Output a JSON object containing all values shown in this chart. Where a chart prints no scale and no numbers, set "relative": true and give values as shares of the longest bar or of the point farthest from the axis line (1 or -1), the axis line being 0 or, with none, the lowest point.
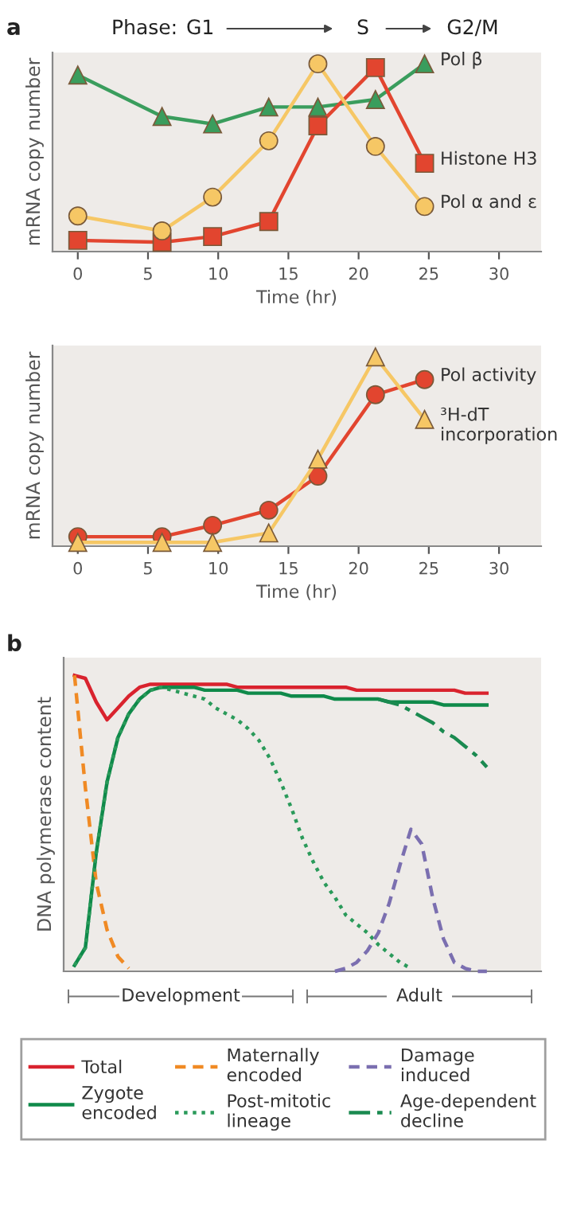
{
  "chart_data": [
    {
      "type": "line",
      "xlabel": "Time (hr)",
      "ylabel": "mRNA copy number",
      "relative": true,
      "tick_labels": "x",
      "xlim": [
        -1.8,
        33
      ],
      "xticks": [
        0,
        5,
        10,
        15,
        20,
        25,
        30
      ],
      "x": [
        0,
        6,
        9.6,
        13.6,
        17.1,
        21.2,
        24.7
      ],
      "annotations": [
        "a",
        "Phase:",
        "G1",
        "S",
        "G2/M"
      ],
      "series": [
        {
          "name": "Pol β",
          "color": "#3a9d5d",
          "marker": "triangle",
          "values": [
            0.94,
            0.72,
            0.68,
            0.77,
            0.77,
            0.81,
            1.0
          ]
        },
        {
          "name": "Histone H3",
          "color": "#e2452f",
          "marker": "square",
          "values": [
            0.06,
            0.05,
            0.08,
            0.16,
            0.67,
            0.98,
            0.47
          ]
        },
        {
          "name": "Pol α and ε",
          "color": "#f6c765",
          "marker": "circle",
          "values": [
            0.19,
            0.11,
            0.29,
            0.59,
            1.0,
            0.56,
            0.24
          ]
        }
      ]
    },
    {
      "type": "line",
      "xlabel": "Time (hr)",
      "ylabel": "mRNA copy number",
      "relative": true,
      "tick_labels": "x",
      "xlim": [
        -1.8,
        33
      ],
      "xticks": [
        0,
        5,
        10,
        15,
        20,
        25,
        30
      ],
      "x": [
        0,
        6,
        9.6,
        13.6,
        17.1,
        21.2,
        24.7
      ],
      "series": [
        {
          "name": "Pol activity",
          "color": "#e2452f",
          "marker": "circle",
          "values": [
            0.05,
            0.05,
            0.11,
            0.19,
            0.37,
            0.8,
            0.88
          ]
        },
        {
          "name": "³H-dT\nincorporation",
          "color": "#f6c765",
          "marker": "triangle",
          "values": [
            0.02,
            0.02,
            0.02,
            0.07,
            0.46,
            1.0,
            0.67
          ]
        }
      ]
    },
    {
      "type": "line",
      "ylabel": "DNA polymerase content",
      "relative": true,
      "tick_labels": false,
      "legend": "bottom",
      "annotations": [
        "b",
        "Development",
        "Adult"
      ],
      "categories": [
        null,
        null,
        null,
        null,
        null,
        null,
        null,
        null,
        null,
        null,
        null,
        null,
        null,
        null,
        null,
        null,
        null,
        null,
        null,
        null,
        null,
        null,
        null,
        null,
        null,
        null,
        null,
        null,
        null,
        null,
        null,
        null,
        null,
        null,
        null,
        null,
        null,
        null,
        null
      ],
      "series": [
        {
          "name": "Total",
          "color": "#d9232e",
          "line_style": "solid",
          "values": [
            1.0,
            0.99,
            0.91,
            0.85,
            0.89,
            0.93,
            0.96,
            0.97,
            0.97,
            0.97,
            0.97,
            0.97,
            0.97,
            0.97,
            0.97,
            0.96,
            0.96,
            0.96,
            0.96,
            0.96,
            0.96,
            0.96,
            0.96,
            0.96,
            0.96,
            0.96,
            0.95,
            0.95,
            0.95,
            0.95,
            0.95,
            0.95,
            0.95,
            0.95,
            0.95,
            0.95,
            0.94,
            0.94,
            0.94
          ]
        },
        {
          "name": "Zygote\nencoded",
          "color": "#0f8a4a",
          "line_style": "solid",
          "values": [
            0.02,
            0.08,
            0.4,
            0.64,
            0.79,
            0.87,
            0.92,
            0.95,
            0.96,
            0.96,
            0.96,
            0.96,
            0.95,
            0.95,
            0.95,
            0.95,
            0.94,
            0.94,
            0.94,
            0.94,
            0.93,
            0.93,
            0.93,
            0.93,
            0.92,
            0.92,
            0.92,
            0.92,
            0.92,
            0.91,
            0.91,
            0.91,
            0.91,
            0.91,
            0.9,
            0.9,
            0.9,
            0.9,
            0.9
          ]
        },
        {
          "name": "Maternally\nencoded",
          "color": "#f08a24",
          "line_style": "dashed",
          "values": [
            1.0,
            0.62,
            0.3,
            0.14,
            0.05,
            0.01,
            null,
            null,
            null,
            null,
            null,
            null,
            null,
            null,
            null,
            null,
            null,
            null,
            null,
            null,
            null,
            null,
            null,
            null,
            null,
            null,
            null,
            null,
            null,
            null,
            null,
            null,
            null,
            null,
            null,
            null,
            null,
            null,
            null
          ]
        },
        {
          "name": "Post-mitotic\nlineage",
          "color": "#2a9a5a",
          "line_style": "dotted",
          "values": [
            0.02,
            0.08,
            0.4,
            0.64,
            0.79,
            0.87,
            0.92,
            0.95,
            0.96,
            0.95,
            0.94,
            0.93,
            0.92,
            0.89,
            0.87,
            0.85,
            0.82,
            0.78,
            0.72,
            0.64,
            0.55,
            0.45,
            0.37,
            0.3,
            0.25,
            0.19,
            0.16,
            0.13,
            0.09,
            0.06,
            0.03,
            0.01,
            null,
            null,
            null,
            null,
            null,
            null,
            null
          ]
        },
        {
          "name": "Damage\ninduced",
          "color": "#7b6fb0",
          "line_style": "dashed",
          "values": [
            null,
            null,
            null,
            null,
            null,
            null,
            null,
            null,
            null,
            null,
            null,
            null,
            null,
            null,
            null,
            null,
            null,
            null,
            null,
            null,
            null,
            null,
            null,
            null,
            0.0,
            0.01,
            0.03,
            0.07,
            0.13,
            0.23,
            0.36,
            0.48,
            0.43,
            0.25,
            0.11,
            0.03,
            0.01,
            0.0,
            0.0
          ]
        },
        {
          "name": "Age-dependent\ndecline",
          "color": "#1a8a50",
          "line_style": "dashdot",
          "values": [
            null,
            null,
            null,
            null,
            null,
            null,
            null,
            null,
            null,
            null,
            null,
            null,
            null,
            null,
            null,
            null,
            null,
            null,
            null,
            null,
            null,
            null,
            null,
            null,
            null,
            null,
            null,
            null,
            0.92,
            0.91,
            0.9,
            0.88,
            0.86,
            0.84,
            0.81,
            0.79,
            0.76,
            0.73,
            0.69
          ]
        }
      ]
    }
  ]
}
